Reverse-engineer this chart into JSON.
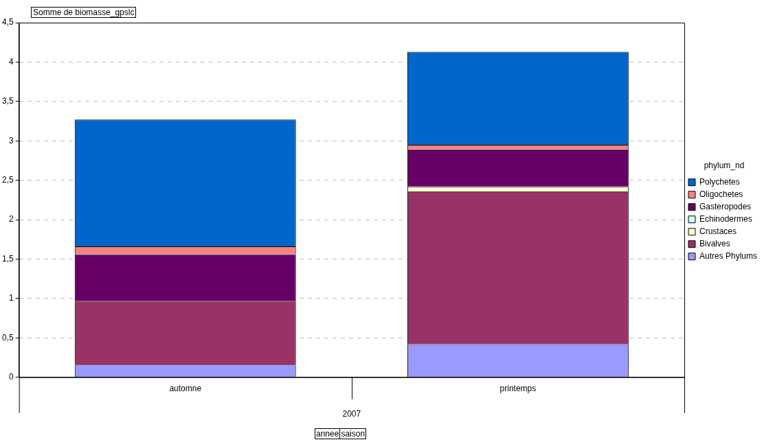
{
  "chart_data": {
    "type": "bar",
    "title": "Somme de biomasse_gpslc",
    "legend_title": "phylum_nd",
    "categories": [
      "automne",
      "printemps"
    ],
    "stacked": true,
    "ylim": [
      0,
      4.5
    ],
    "yticks": [
      0,
      {
        "value": 0.5,
        "label": "0,5"
      },
      1,
      {
        "value": 1.5,
        "label": "1,5"
      },
      2,
      {
        "value": 2.5,
        "label": "2,5"
      },
      3,
      {
        "value": 3.5,
        "label": "3,5"
      },
      4,
      {
        "value": 4.5,
        "label": "4,5"
      }
    ],
    "grid": "y",
    "legend": "right",
    "annotations": [
      "2007",
      "annee",
      "saison"
    ],
    "series": [
      {
        "name": "Autres Phylums",
        "color": "#9999ff",
        "values": [
          0.16,
          0.42
        ]
      },
      {
        "name": "Bivalves",
        "color": "#993366",
        "values": [
          0.81,
          1.94
        ]
      },
      {
        "name": "Crustaces",
        "color": "#ffffcc",
        "values": [
          0,
          0.06
        ]
      },
      {
        "name": "Echinodermes",
        "color": "#ccffff",
        "values": [
          null,
          null
        ]
      },
      {
        "name": "Gasteropodes",
        "color": "#660066",
        "values": [
          0.59,
          0.47
        ]
      },
      {
        "name": "Oligochetes",
        "color": "#ff8080",
        "values": [
          0.1,
          0.06
        ]
      },
      {
        "name": "Polychetes",
        "color": "#0066cc",
        "values": [
          1.61,
          1.18
        ]
      }
    ]
  }
}
